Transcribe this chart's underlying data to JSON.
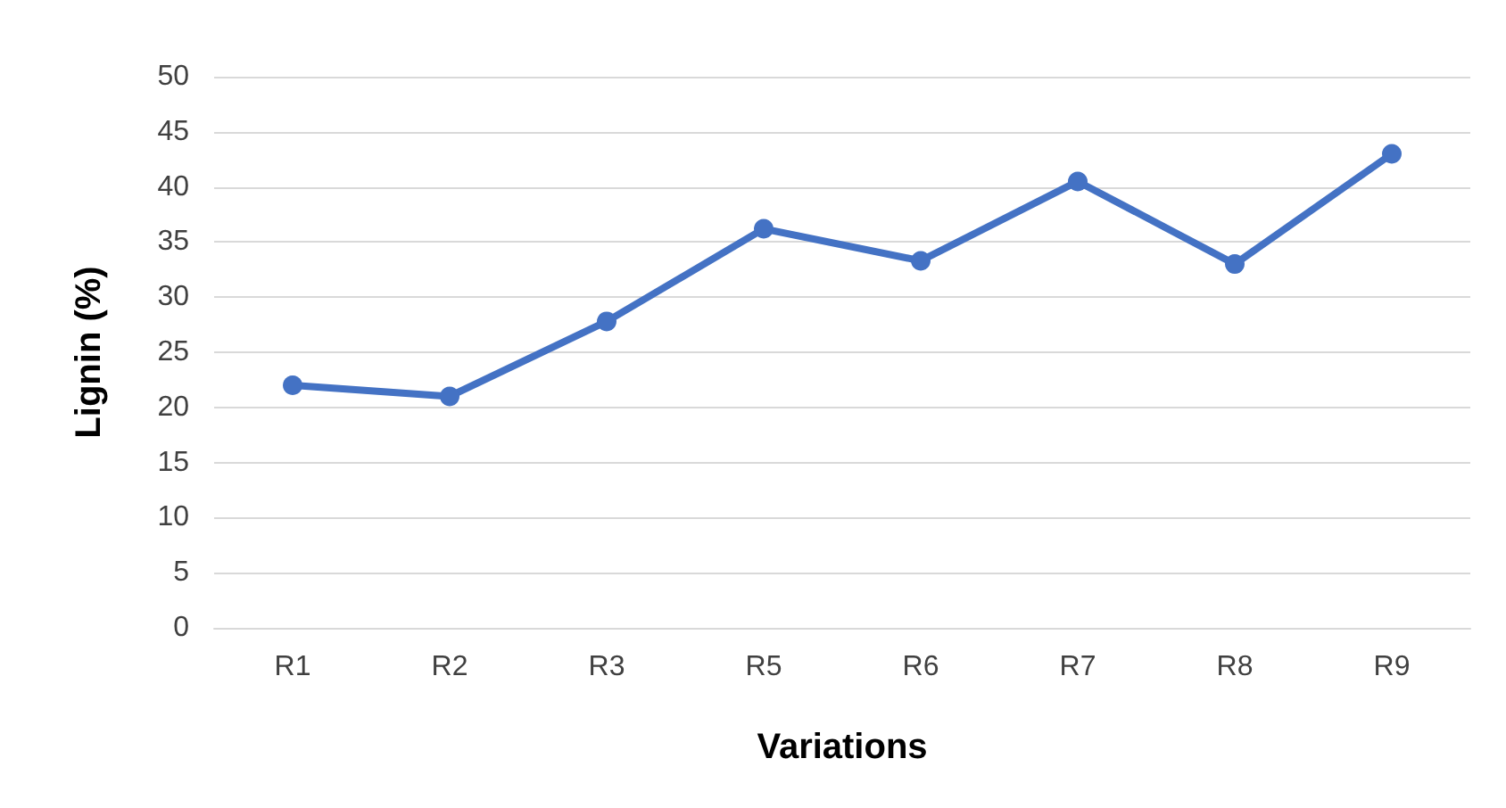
{
  "chart_data": {
    "type": "line",
    "xlabel": "Variations",
    "ylabel": "Lignin (%)",
    "categories": [
      "R1",
      "R2",
      "R3",
      "R5",
      "R6",
      "R7",
      "R8",
      "R9"
    ],
    "series": [
      {
        "color": "#4472c4",
        "values": [
          22,
          21,
          27.8,
          36.2,
          33.3,
          40.5,
          33,
          43
        ]
      }
    ],
    "ylim": [
      0,
      50
    ],
    "yticks": [
      0,
      5,
      10,
      15,
      20,
      25,
      30,
      35,
      40,
      45,
      50
    ],
    "grid": "y",
    "marker": "circle",
    "line_style": "solid"
  }
}
